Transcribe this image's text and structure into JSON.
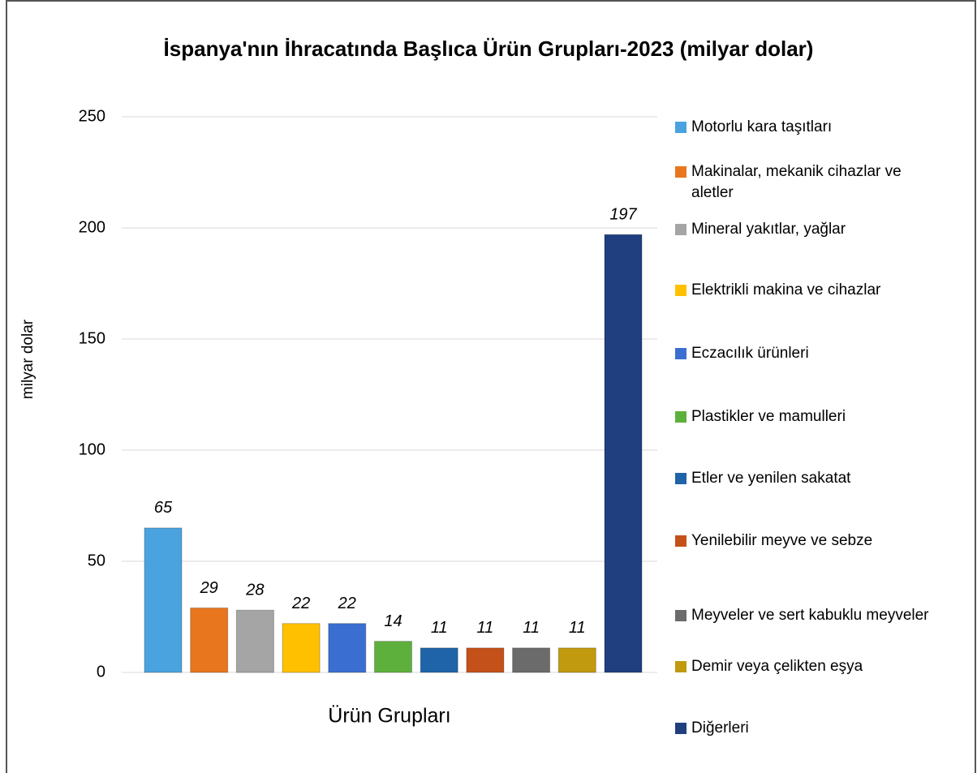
{
  "chart_data": {
    "type": "bar",
    "title": "İspanya'nın İhracatında Başlıca Ürün Grupları-2023 (milyar dolar)",
    "x_label": "Ürün Grupları",
    "y_label": "milyar dolar",
    "ylim": [
      0,
      250
    ],
    "yticks": [
      0,
      50,
      100,
      150,
      200,
      250
    ],
    "grid": true,
    "legend": "right",
    "series": [
      {
        "name": "Motorlu kara taşıtları",
        "color": "#4aa3df",
        "values": [
          65
        ]
      },
      {
        "name": "Makinalar, mekanik cihazlar ve aletler",
        "color": "#e8761e",
        "values": [
          29
        ]
      },
      {
        "name": "Mineral yakıtlar, yağlar",
        "color": "#a5a5a5",
        "values": [
          28
        ]
      },
      {
        "name": "Elektrikli makina ve cihazlar",
        "color": "#ffc000",
        "values": [
          22
        ]
      },
      {
        "name": "Eczacılık ürünleri",
        "color": "#3a6fd1",
        "values": [
          22
        ]
      },
      {
        "name": "Plastikler ve mamulleri",
        "color": "#5eb03c",
        "values": [
          14
        ]
      },
      {
        "name": "Etler ve yenilen sakatat",
        "color": "#1f64a8",
        "values": [
          11
        ]
      },
      {
        "name": "Yenilebilir meyve ve sebze",
        "color": "#c4511a",
        "values": [
          11
        ]
      },
      {
        "name": "Meyveler ve sert kabuklu meyveler",
        "color": "#6b6b6b",
        "values": [
          11
        ]
      },
      {
        "name": "Demir veya çelikten eşya",
        "color": "#c19a0f",
        "values": [
          11
        ]
      },
      {
        "name": "Diğerleri",
        "color": "#203f7f",
        "values": [
          197
        ]
      }
    ]
  }
}
